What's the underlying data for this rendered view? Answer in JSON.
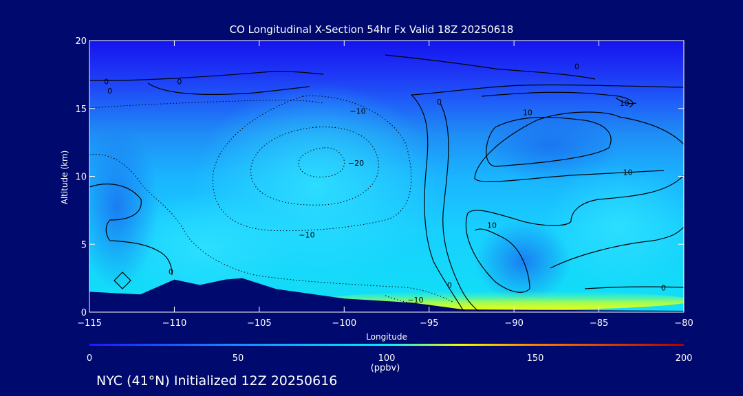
{
  "title": "CO Longitudinal X-Section 54hr  Fx Valid 18Z 20250618",
  "footer": "NYC (41°N) Initialized 12Z 20250616",
  "chart_data": {
    "type": "heatmap",
    "title": "CO Longitudinal X-Section 54hr  Fx Valid 18Z 20250618",
    "xlabel": "Longitude",
    "ylabel": "Altitude (km)",
    "xlim": [
      -115,
      -80
    ],
    "ylim": [
      0,
      20
    ],
    "x_ticks": [
      -115,
      -110,
      -105,
      -100,
      -95,
      -90,
      -85,
      -80
    ],
    "x_tick_labels": [
      "−115",
      "−110",
      "−105",
      "−100",
      "−95",
      "−90",
      "−85",
      "−80"
    ],
    "y_ticks": [
      0,
      5,
      10,
      15,
      20
    ],
    "y_tick_labels": [
      "0",
      "5",
      "10",
      "15",
      "20"
    ],
    "colorbar": {
      "min": 0,
      "max": 200,
      "ticks": [
        0,
        50,
        100,
        150,
        200
      ],
      "tick_labels": [
        "0",
        "50",
        "100",
        "150",
        "200"
      ],
      "units": "(ppbv)",
      "stops": [
        {
          "value": 0,
          "color": "#1a1aff"
        },
        {
          "value": 50,
          "color": "#1a8cff"
        },
        {
          "value": 100,
          "color": "#00f0ff"
        },
        {
          "value": 125,
          "color": "#f0ff00"
        },
        {
          "value": 150,
          "color": "#ff8000"
        },
        {
          "value": 200,
          "color": "#b00000"
        }
      ]
    },
    "background_field": [
      {
        "alt_range": [
          17,
          20
        ],
        "value": 10
      },
      {
        "alt_range": [
          14,
          17
        ],
        "value": 30
      },
      {
        "alt_range": [
          10,
          14
        ],
        "value": 55
      },
      {
        "alt_range": [
          5,
          10
        ],
        "value": 70
      },
      {
        "alt_range": [
          0,
          5
        ],
        "value": 80
      }
    ],
    "surface_maximum": {
      "lon_range": [
        -98,
        -82
      ],
      "alt": 0.6,
      "value": 120
    },
    "terrain": [
      [
        -115,
        1.5
      ],
      [
        -113.5,
        1.4
      ],
      [
        -112,
        1.3
      ],
      [
        -110,
        2.4
      ],
      [
        -108.5,
        2.0
      ],
      [
        -107,
        2.4
      ],
      [
        -106,
        2.5
      ],
      [
        -104,
        1.7
      ],
      [
        -100,
        1.0
      ],
      [
        -96,
        0.7
      ],
      [
        -93,
        0.2
      ],
      [
        -80,
        0.1
      ]
    ],
    "contour_labels": [
      {
        "text": "0",
        "lon": -114,
        "alt": 17.0
      },
      {
        "text": "0",
        "lon": -113.8,
        "alt": 16.3
      },
      {
        "text": "0",
        "lon": -109.7,
        "alt": 17.0
      },
      {
        "text": "0",
        "lon": -94.4,
        "alt": 15.5
      },
      {
        "text": "0",
        "lon": -86.3,
        "alt": 18.1
      },
      {
        "text": "−10",
        "lon": -99.2,
        "alt": 14.8
      },
      {
        "text": "−20",
        "lon": -99.3,
        "alt": 11.0
      },
      {
        "text": "−10",
        "lon": -102.2,
        "alt": 5.7
      },
      {
        "text": "10",
        "lon": -89.2,
        "alt": 14.7
      },
      {
        "text": "10",
        "lon": -83.5,
        "alt": 15.4
      },
      {
        "text": "10",
        "lon": -83.3,
        "alt": 10.3
      },
      {
        "text": "10",
        "lon": -91.3,
        "alt": 6.4
      },
      {
        "text": "0",
        "lon": -110.2,
        "alt": 3.0
      },
      {
        "text": "0",
        "lon": -93.8,
        "alt": 2.0
      },
      {
        "text": "0",
        "lon": -81.2,
        "alt": 1.8
      },
      {
        "text": "−10",
        "lon": -95.8,
        "alt": 0.9
      }
    ]
  }
}
